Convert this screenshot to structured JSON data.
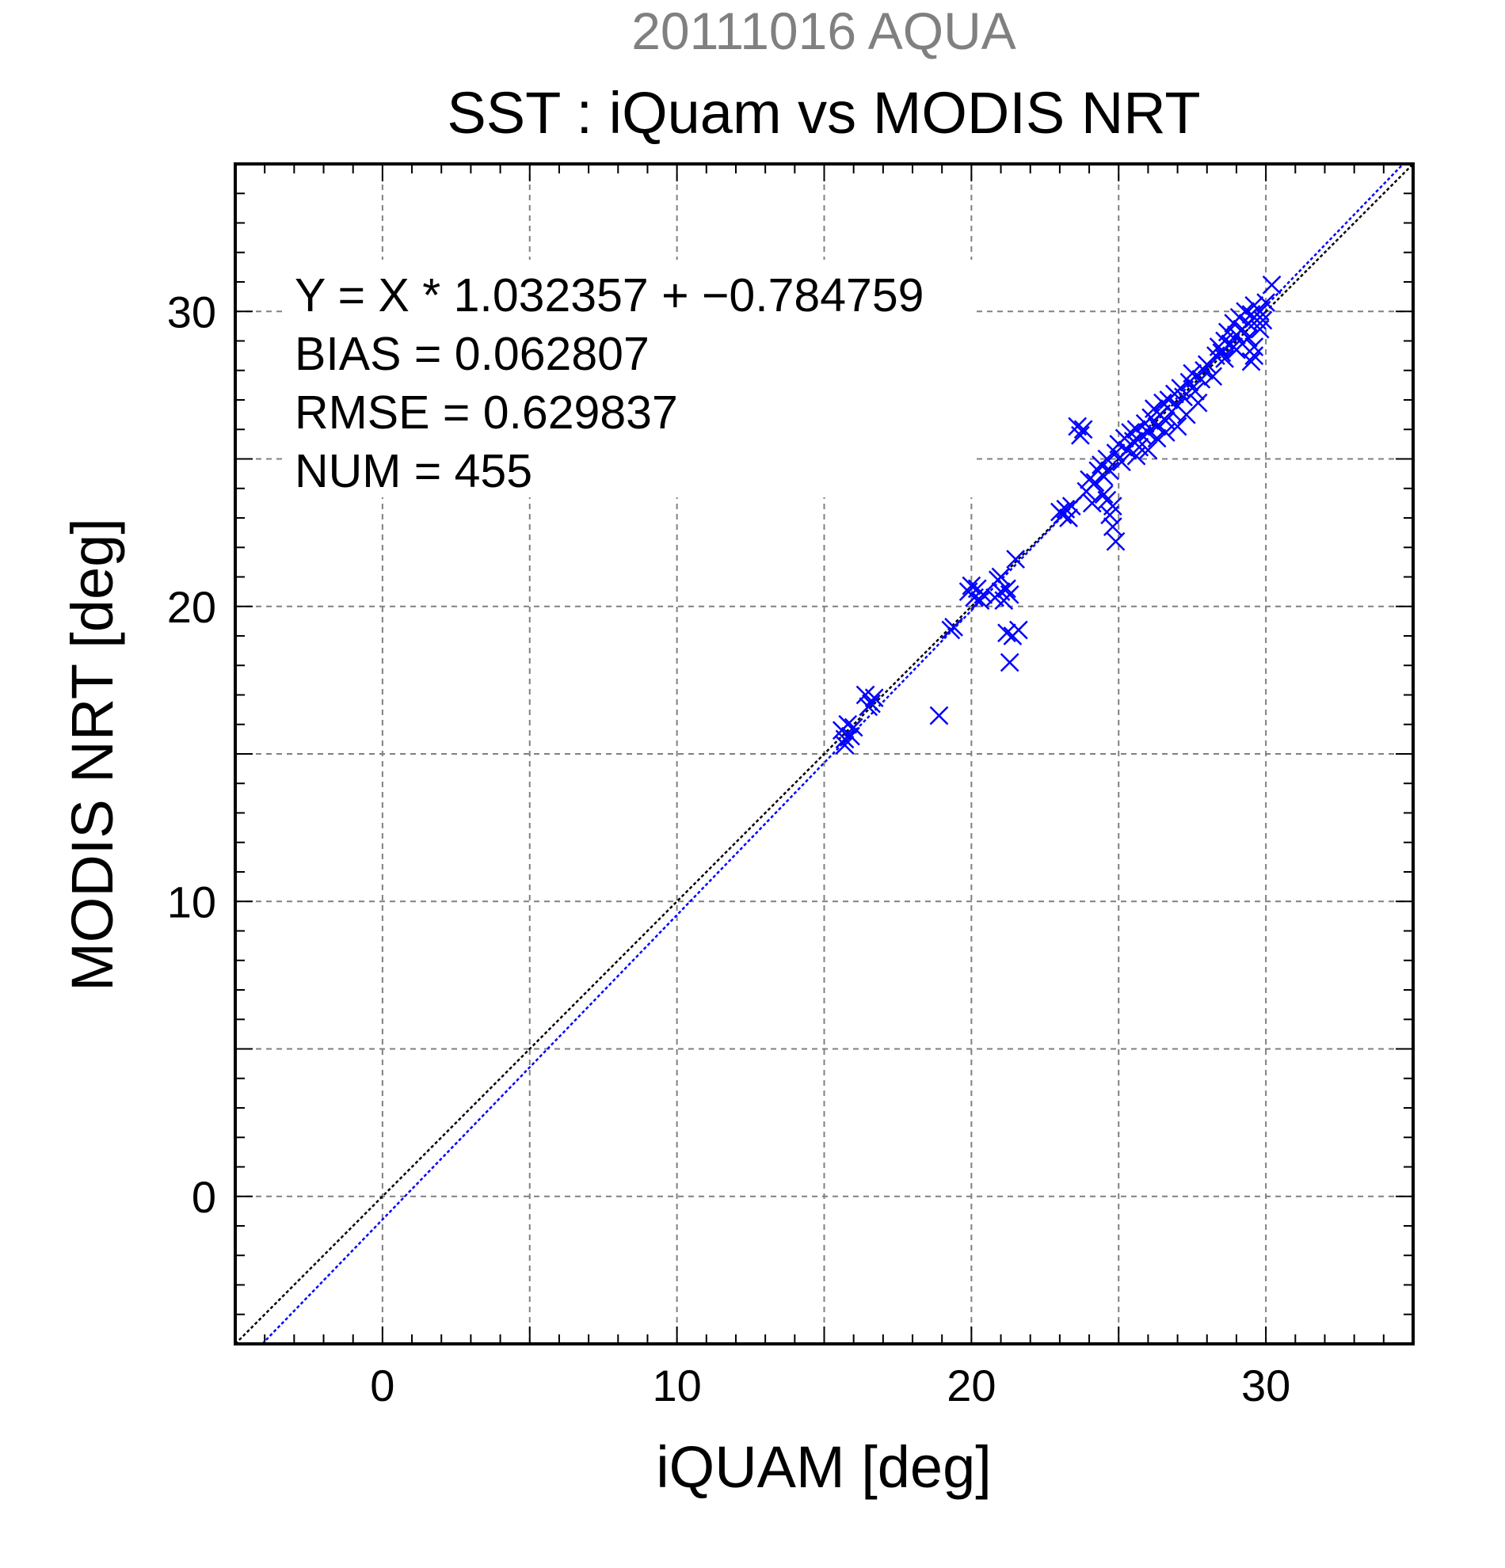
{
  "figure": {
    "suptitle": "20111016 AQUA",
    "suptitle_color": "#808080",
    "title": "SST : iQuam vs MODIS NRT"
  },
  "stats": {
    "equation": "Y = X * 1.032357 + −0.784759",
    "bias": "BIAS = 0.062807",
    "rmse": "RMSE = 0.629837",
    "num": "NUM = 455"
  },
  "chart_data": {
    "type": "scatter",
    "title": "SST : iQuam vs MODIS NRT",
    "xlabel": "iQUAM [deg]",
    "ylabel": "MODIS NRT [deg]",
    "xlim": [
      -5,
      35
    ],
    "ylim": [
      -5,
      35
    ],
    "xticks": [
      0,
      10,
      20,
      30
    ],
    "yticks": [
      0,
      10,
      20,
      30
    ],
    "grid": true,
    "marker": "x",
    "marker_color": "#0000ff",
    "lines": [
      {
        "kind": "identity",
        "slope": 1,
        "intercept": 0,
        "color": "#000000",
        "style": "dotted"
      },
      {
        "kind": "regression",
        "slope": 1.032357,
        "intercept": -0.784759,
        "color": "#0000ff",
        "style": "dotted"
      }
    ],
    "points": [
      [
        15.6,
        15.8
      ],
      [
        15.7,
        15.5
      ],
      [
        15.8,
        16.0
      ],
      [
        15.9,
        15.6
      ],
      [
        16.0,
        15.9
      ],
      [
        15.7,
        15.3
      ],
      [
        16.4,
        17.0
      ],
      [
        16.6,
        16.7
      ],
      [
        16.7,
        16.9
      ],
      [
        16.5,
        16.6
      ],
      [
        18.9,
        16.3
      ],
      [
        19.3,
        19.2
      ],
      [
        19.4,
        19.3
      ],
      [
        19.9,
        20.5
      ],
      [
        20.0,
        20.7
      ],
      [
        20.1,
        20.3
      ],
      [
        20.3,
        20.2
      ],
      [
        20.4,
        20.4
      ],
      [
        20.2,
        20.6
      ],
      [
        20.8,
        20.3
      ],
      [
        20.9,
        20.9
      ],
      [
        21.0,
        20.5
      ],
      [
        21.1,
        20.2
      ],
      [
        21.0,
        21.0
      ],
      [
        21.2,
        20.6
      ],
      [
        21.3,
        20.4
      ],
      [
        21.5,
        21.6
      ],
      [
        21.2,
        19.1
      ],
      [
        21.3,
        18.1
      ],
      [
        21.4,
        19.0
      ],
      [
        21.6,
        19.2
      ],
      [
        23.0,
        23.2
      ],
      [
        23.1,
        23.1
      ],
      [
        23.2,
        23.3
      ],
      [
        23.3,
        23.0
      ],
      [
        23.4,
        23.4
      ],
      [
        23.6,
        26.1
      ],
      [
        23.7,
        25.8
      ],
      [
        23.8,
        26.0
      ],
      [
        23.9,
        23.9
      ],
      [
        24.0,
        24.3
      ],
      [
        24.1,
        23.5
      ],
      [
        24.2,
        24.2
      ],
      [
        24.3,
        24.6
      ],
      [
        24.4,
        24.8
      ],
      [
        24.5,
        24.4
      ],
      [
        24.6,
        25.0
      ],
      [
        24.7,
        24.6
      ],
      [
        24.5,
        23.8
      ],
      [
        24.6,
        23.6
      ],
      [
        24.8,
        23.4
      ],
      [
        24.8,
        22.7
      ],
      [
        24.9,
        22.2
      ],
      [
        24.7,
        23.1
      ],
      [
        24.9,
        25.2
      ],
      [
        25.0,
        25.5
      ],
      [
        25.1,
        24.9
      ],
      [
        25.2,
        25.7
      ],
      [
        25.3,
        25.3
      ],
      [
        25.4,
        25.9
      ],
      [
        25.5,
        25.6
      ],
      [
        25.6,
        26.0
      ],
      [
        25.7,
        25.4
      ],
      [
        25.8,
        25.8
      ],
      [
        25.9,
        26.2
      ],
      [
        26.0,
        25.9
      ],
      [
        26.1,
        26.4
      ],
      [
        26.2,
        26.7
      ],
      [
        26.3,
        26.1
      ],
      [
        26.4,
        26.5
      ],
      [
        26.5,
        26.9
      ],
      [
        26.6,
        26.3
      ],
      [
        26.7,
        27.0
      ],
      [
        26.8,
        26.6
      ],
      [
        26.9,
        27.2
      ],
      [
        27.0,
        26.8
      ],
      [
        27.1,
        27.4
      ],
      [
        27.2,
        27.1
      ],
      [
        25.6,
        25.1
      ],
      [
        26.0,
        25.3
      ],
      [
        26.3,
        25.7
      ],
      [
        26.6,
        25.9
      ],
      [
        27.0,
        26.1
      ],
      [
        27.3,
        26.5
      ],
      [
        27.4,
        27.6
      ],
      [
        27.5,
        27.9
      ],
      [
        27.6,
        27.3
      ],
      [
        27.7,
        26.9
      ],
      [
        27.8,
        27.7
      ],
      [
        27.9,
        28.0
      ],
      [
        28.0,
        28.2
      ],
      [
        28.2,
        27.8
      ],
      [
        28.3,
        28.5
      ],
      [
        28.4,
        28.8
      ],
      [
        28.5,
        28.6
      ],
      [
        28.6,
        29.0
      ],
      [
        28.7,
        29.3
      ],
      [
        28.8,
        28.9
      ],
      [
        28.9,
        29.6
      ],
      [
        29.0,
        29.2
      ],
      [
        29.1,
        29.8
      ],
      [
        29.2,
        29.4
      ],
      [
        29.3,
        30.0
      ],
      [
        29.4,
        29.6
      ],
      [
        29.5,
        29.9
      ],
      [
        29.6,
        30.2
      ],
      [
        29.7,
        29.7
      ],
      [
        29.8,
        30.0
      ],
      [
        29.0,
        28.7
      ],
      [
        29.2,
        28.9
      ],
      [
        29.4,
        29.1
      ],
      [
        29.6,
        28.8
      ],
      [
        29.8,
        29.4
      ],
      [
        29.9,
        29.7
      ],
      [
        29.5,
        28.3
      ],
      [
        29.6,
        28.5
      ],
      [
        30.2,
        30.9
      ],
      [
        30.0,
        30.3
      ],
      [
        28.6,
        28.4
      ],
      [
        28.9,
        28.8
      ]
    ]
  }
}
